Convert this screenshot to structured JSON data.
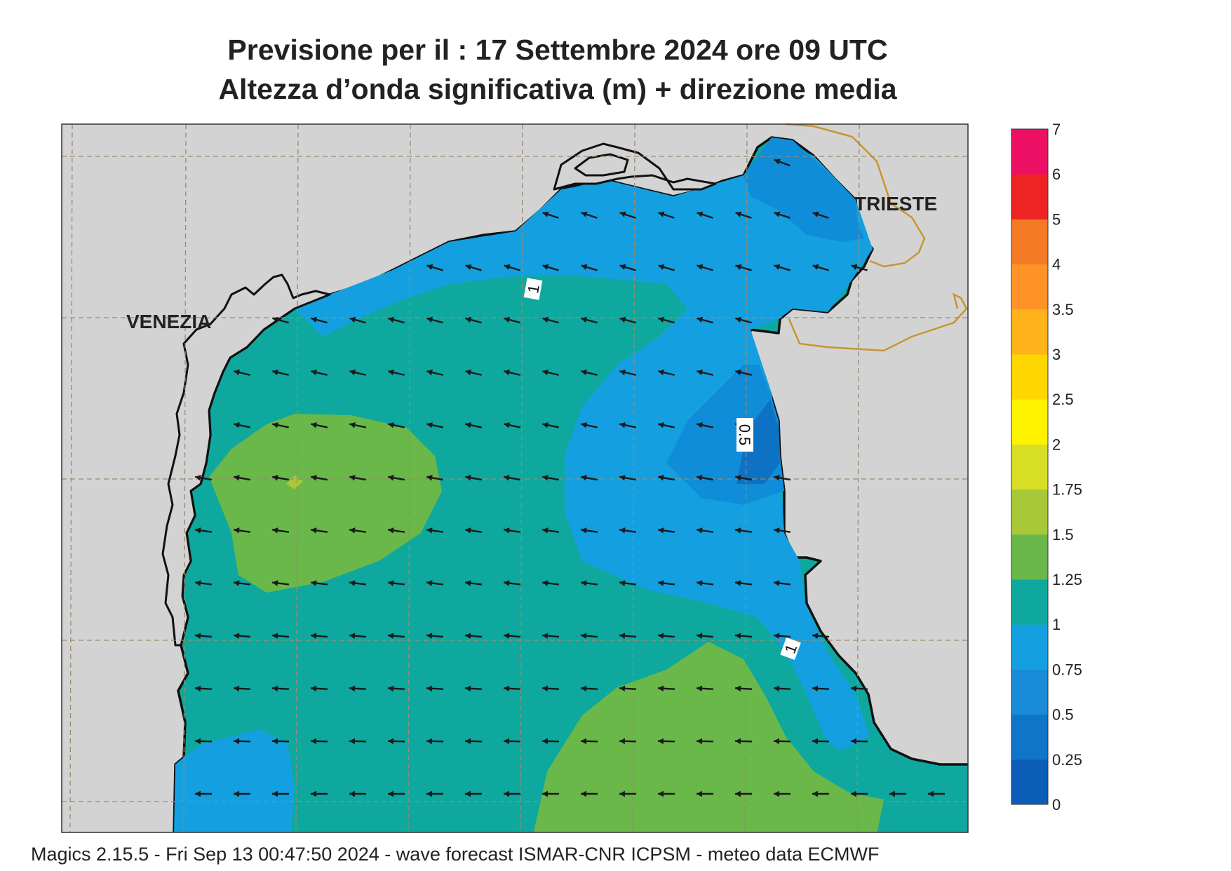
{
  "title": {
    "line1": "Previsione per il  :  17 Settembre 2024   ore 09 UTC",
    "line2": "Altezza d’onda significativa (m) + direzione media"
  },
  "map": {
    "cities": [
      "VENEZIA",
      "TRIESTE"
    ],
    "contour_labels": [
      "1",
      "0.5",
      "1"
    ],
    "colors": {
      "land": "#d3d3d3",
      "coast": "#111111",
      "border": "#c89530",
      "grid": "#9a8a70",
      "arrow": "#1a1a1a"
    }
  },
  "legend": {
    "colors": [
      "#0b5db8",
      "#0f75c8",
      "#1a8bd8",
      "#14a0e0",
      "#0ea89f",
      "#6ab84a",
      "#a9c838",
      "#d8de24",
      "#fff200",
      "#ffd700",
      "#ffb21a",
      "#ff9326",
      "#f57a26",
      "#ee2424",
      "#ee1064"
    ],
    "labels": [
      "0",
      "0.25",
      "0.5",
      "0.75",
      "1",
      "1.25",
      "1.5",
      "1.75",
      "2",
      "2.5",
      "3",
      "3.5",
      "4",
      "5",
      "6",
      "7"
    ]
  },
  "footer": "Magics 2.15.5 - Fri Sep 13 00:47:50 2024 - wave forecast  ISMAR-CNR  ICPSM - meteo data    ECMWF"
}
